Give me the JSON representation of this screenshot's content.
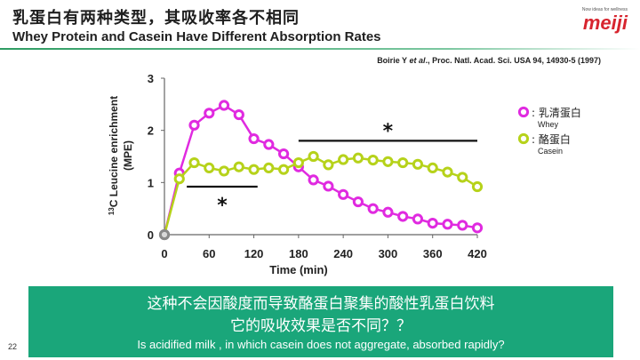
{
  "slide": {
    "title_zh": "乳蛋白有两种类型，其吸收率各不相同",
    "title_en": "Whey Protein and Casein Have Different Absorption Rates",
    "logo_tagline": "Now ideas for wellness",
    "logo": "meiji",
    "citation_authors": "Boirie Y",
    "citation_etal": " et al",
    "citation_rest": "., Proc. Natl. Acad. Sci. USA 94, 14930-5 (1997)",
    "page_number": "22"
  },
  "banner": {
    "line1_zh": "这种不会因酸度而导致酪蛋白聚集的酸性乳蛋白饮料",
    "line2_zh": "它的吸收效果是否不同？？",
    "line3_en": "Is acidified milk , in which casein does not aggregate, absorbed rapidly?"
  },
  "colors": {
    "whey": "#e02ae0",
    "casein": "#b6d21a",
    "accent": "#1aa67a"
  },
  "chart_data": {
    "type": "line",
    "xlabel": "Time (min)",
    "ylabel_prefix": "13",
    "ylabel": "C Leucine enrichment",
    "ylabel_unit": "(MPE)",
    "xlim": [
      0,
      420
    ],
    "ylim": [
      0,
      3
    ],
    "xticks": [
      0,
      60,
      120,
      180,
      240,
      300,
      360,
      420
    ],
    "yticks": [
      0,
      1,
      2,
      3
    ],
    "grid": false,
    "legend_position": "right",
    "series": [
      {
        "name": "乳清蛋白",
        "name_en": "Whey",
        "color": "#e02ae0",
        "x": [
          0,
          20,
          40,
          60,
          80,
          100,
          120,
          140,
          160,
          180,
          200,
          220,
          240,
          260,
          280,
          300,
          320,
          340,
          360,
          380,
          400,
          420
        ],
        "y": [
          0,
          1.18,
          2.1,
          2.33,
          2.48,
          2.3,
          1.84,
          1.73,
          1.55,
          1.3,
          1.05,
          0.93,
          0.77,
          0.63,
          0.5,
          0.43,
          0.35,
          0.3,
          0.22,
          0.2,
          0.18,
          0.13
        ]
      },
      {
        "name": "酪蛋白",
        "name_en": "Casein",
        "color": "#b6d21a",
        "x": [
          0,
          20,
          40,
          60,
          80,
          100,
          120,
          140,
          160,
          180,
          200,
          220,
          240,
          260,
          280,
          300,
          320,
          340,
          360,
          380,
          400,
          420
        ],
        "y": [
          0,
          1.07,
          1.38,
          1.28,
          1.22,
          1.3,
          1.25,
          1.28,
          1.25,
          1.38,
          1.5,
          1.34,
          1.44,
          1.47,
          1.43,
          1.4,
          1.38,
          1.35,
          1.28,
          1.2,
          1.1,
          0.92
        ]
      }
    ],
    "annotations": [
      {
        "text": "*",
        "x_start": 30,
        "x_end": 125,
        "y": 0.92
      },
      {
        "text": "*",
        "x_start": 180,
        "x_end": 420,
        "y": 1.8
      }
    ]
  }
}
